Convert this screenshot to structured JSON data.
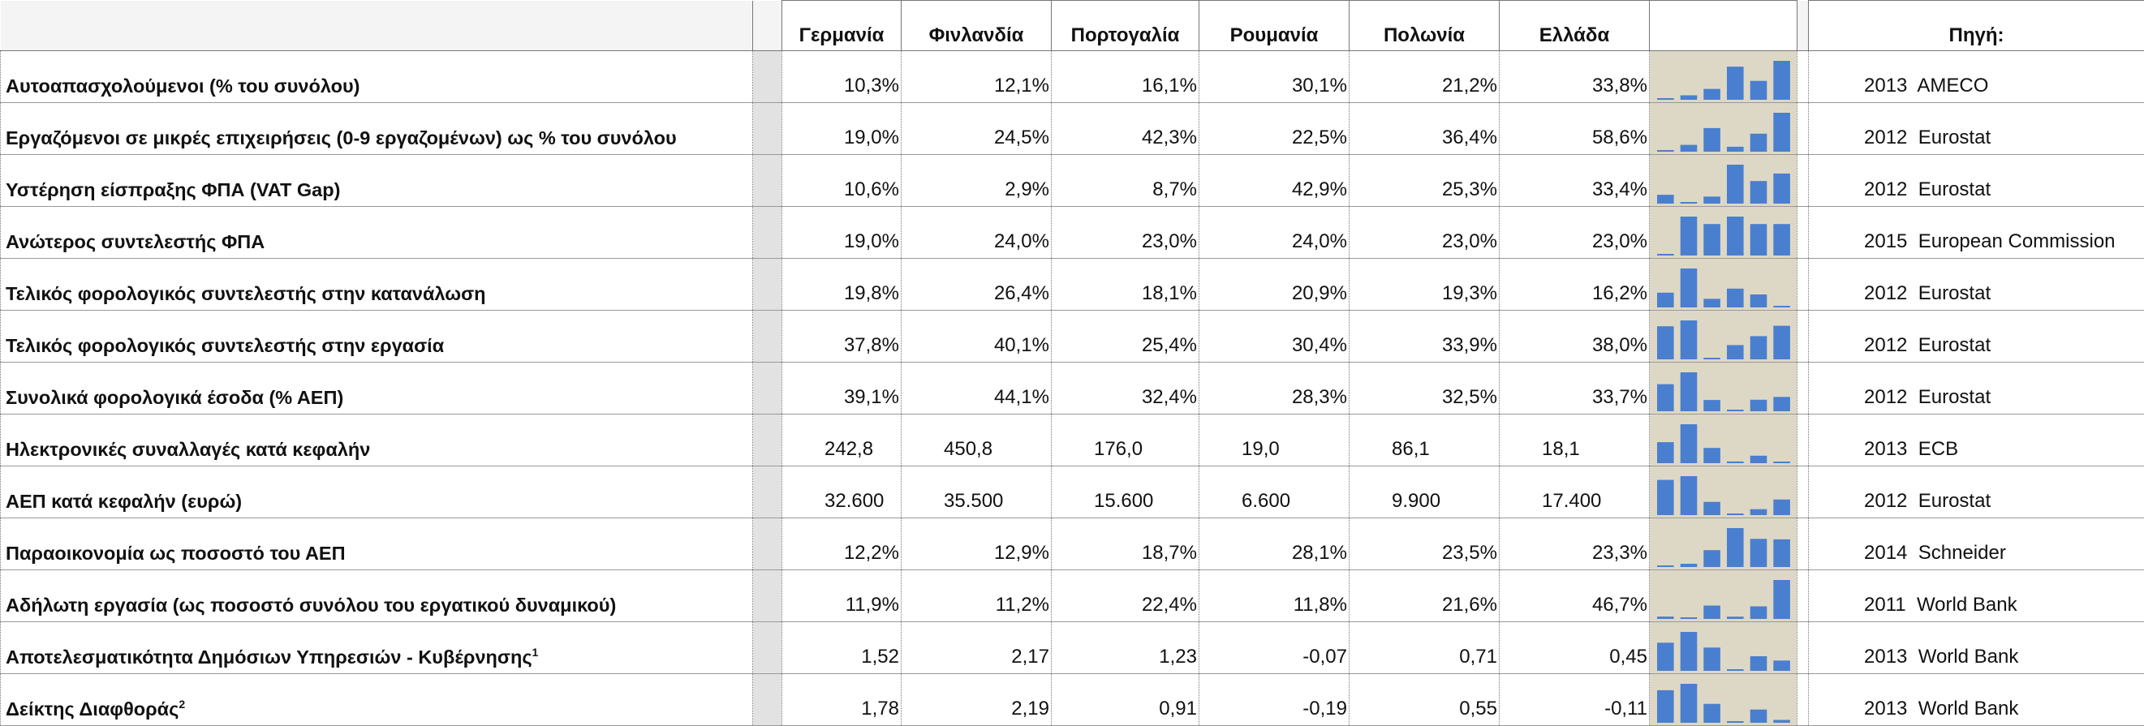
{
  "columns": [
    "Γερμανία",
    "Φινλανδία",
    "Πορτογαλία",
    "Ρουμανία",
    "Πολωνία",
    "Ελλάδα"
  ],
  "source_header": "Πηγή:",
  "spark_color": "#4a7fcf",
  "spark_bg": "#ddd8c5",
  "rows": [
    {
      "label": "Αυτοαπασχολούμενοι (% του συνόλου)",
      "sup": "",
      "kind": "pct",
      "values": [
        "10,3%",
        "12,1%",
        "16,1%",
        "30,1%",
        "21,2%",
        "33,8%"
      ],
      "nums": [
        10.3,
        12.1,
        16.1,
        30.1,
        21.2,
        33.8
      ],
      "year": "2013",
      "source": "AMECO"
    },
    {
      "label": "Εργαζόμενοι σε μικρές επιχειρήσεις (0-9 εργαζομένων) ως % του συνόλου",
      "sup": "",
      "kind": "pct",
      "values": [
        "19,0%",
        "24,5%",
        "42,3%",
        "22,5%",
        "36,4%",
        "58,6%"
      ],
      "nums": [
        19.0,
        24.5,
        42.3,
        22.5,
        36.4,
        58.6
      ],
      "year": "2012",
      "source": "Eurostat"
    },
    {
      "label": "Υστέρηση είσπραξης ΦΠΑ (VAT Gap)",
      "sup": "",
      "kind": "pct",
      "values": [
        "10,6%",
        "2,9%",
        "8,7%",
        "42,9%",
        "25,3%",
        "33,4%"
      ],
      "nums": [
        10.6,
        2.9,
        8.7,
        42.9,
        25.3,
        33.4
      ],
      "year": "2012",
      "source": "Eurostat"
    },
    {
      "label": "Ανώτερος συντελεστής ΦΠΑ",
      "sup": "",
      "kind": "pct",
      "values": [
        "19,0%",
        "24,0%",
        "23,0%",
        "24,0%",
        "23,0%",
        "23,0%"
      ],
      "nums": [
        19.0,
        24.0,
        23.0,
        24.0,
        23.0,
        23.0
      ],
      "year": "2015",
      "source": "European Commission"
    },
    {
      "label": "Τελικός φορολογικός συντελεστής στην κατανάλωση",
      "sup": "",
      "kind": "pct",
      "values": [
        "19,8%",
        "26,4%",
        "18,1%",
        "20,9%",
        "19,3%",
        "16,2%"
      ],
      "nums": [
        19.8,
        26.4,
        18.1,
        20.9,
        19.3,
        16.2
      ],
      "year": "2012",
      "source": "Eurostat"
    },
    {
      "label": "Τελικός φορολογικός συντελεστής στην εργασία",
      "sup": "",
      "kind": "pct",
      "values": [
        "37,8%",
        "40,1%",
        "25,4%",
        "30,4%",
        "33,9%",
        "38,0%"
      ],
      "nums": [
        37.8,
        40.1,
        25.4,
        30.4,
        33.9,
        38.0
      ],
      "year": "2012",
      "source": "Eurostat"
    },
    {
      "label": "Συνολικά φορολογικά έσοδα (% ΑΕΠ)",
      "sup": "",
      "kind": "pct",
      "values": [
        "39,1%",
        "44,1%",
        "32,4%",
        "28,3%",
        "32,5%",
        "33,7%"
      ],
      "nums": [
        39.1,
        44.1,
        32.4,
        28.3,
        32.5,
        33.7
      ],
      "year": "2012",
      "source": "Eurostat"
    },
    {
      "label": "Ηλεκτρονικές συναλλαγές κατά κεφαλήν",
      "sup": "",
      "kind": "num",
      "values": [
        "242,8",
        "450,8",
        "176,0",
        "19,0",
        "86,1",
        "18,1"
      ],
      "nums": [
        242.8,
        450.8,
        176.0,
        19.0,
        86.1,
        18.1
      ],
      "year": "2013",
      "source": "ECB"
    },
    {
      "label": "ΑΕΠ κατά κεφαλήν (ευρώ)",
      "sup": "",
      "kind": "num",
      "values": [
        "32.600",
        "35.500",
        "15.600",
        "6.600",
        "9.900",
        "17.400"
      ],
      "nums": [
        32600,
        35500,
        15600,
        6600,
        9900,
        17400
      ],
      "year": "2012",
      "source": "Eurostat"
    },
    {
      "label": "Παραοικονομία ως ποσοστό του ΑΕΠ",
      "sup": "",
      "kind": "pct",
      "values": [
        "12,2%",
        "12,9%",
        "18,7%",
        "28,1%",
        "23,5%",
        "23,3%"
      ],
      "nums": [
        12.2,
        12.9,
        18.7,
        28.1,
        23.5,
        23.3
      ],
      "year": "2014",
      "source": "Schneider"
    },
    {
      "label": "Αδήλωτη εργασία (ως ποσοστό συνόλου του εργατικού δυναμικού)",
      "sup": "",
      "kind": "pct",
      "values": [
        "11,9%",
        "11,2%",
        "22,4%",
        "11,8%",
        "21,6%",
        "46,7%"
      ],
      "nums": [
        11.9,
        11.2,
        22.4,
        11.8,
        21.6,
        46.7
      ],
      "year": "2011",
      "source": "World Bank"
    },
    {
      "label": "Αποτελεσματικότητα Δημόσιων Υπηρεσιών - Κυβέρνησης",
      "sup": "1",
      "kind": "pct",
      "values": [
        "1,52",
        "2,17",
        "1,23",
        "-0,07",
        "0,71",
        "0,45"
      ],
      "nums": [
        1.52,
        2.17,
        1.23,
        -0.07,
        0.71,
        0.45
      ],
      "year": "2013",
      "source": "World Bank"
    },
    {
      "label": "Δείκτης Διαφθοράς",
      "sup": "2",
      "kind": "pct",
      "values": [
        "1,78",
        "2,19",
        "0,91",
        "-0,19",
        "0,55",
        "-0,11"
      ],
      "nums": [
        1.78,
        2.19,
        0.91,
        -0.19,
        0.55,
        -0.11
      ],
      "year": "2013",
      "source": "World Bank"
    }
  ]
}
